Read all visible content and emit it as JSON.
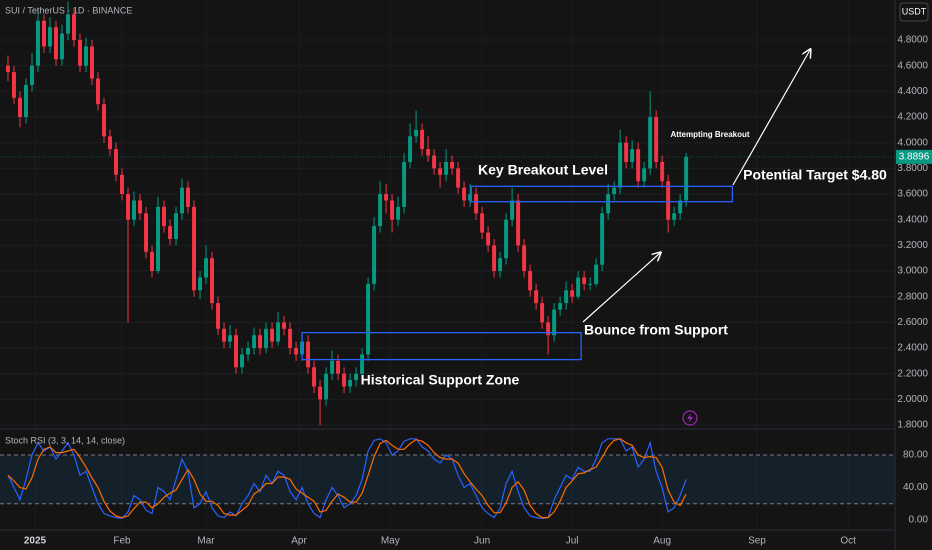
{
  "header": {
    "title": "SUI / TetherUS · 1D · BINANCE",
    "currency": "USDT"
  },
  "chart_data": [
    {
      "type": "candlestick",
      "up_color": "#089981",
      "down_color": "#f23645",
      "grid": true,
      "xlim": [
        -1.33,
        147.8
      ],
      "ylim": [
        1.777,
        5.112
      ],
      "yticks": [
        {
          "value": 1.8,
          "label": "1.8000"
        },
        {
          "value": 2.0,
          "label": "2.0000"
        },
        {
          "value": 2.2,
          "label": "2.2000"
        },
        {
          "value": 2.4,
          "label": "2.4000"
        },
        {
          "value": 2.6,
          "label": "2.6000"
        },
        {
          "value": 2.8,
          "label": "2.8000"
        },
        {
          "value": 3.0,
          "label": "3.0000"
        },
        {
          "value": 3.2,
          "label": "3.2000"
        },
        {
          "value": 3.4,
          "label": "3.4000"
        },
        {
          "value": 3.6,
          "label": "3.6000"
        },
        {
          "value": 3.8,
          "label": "3.8000"
        },
        {
          "value": 4.0,
          "label": "4.0000"
        },
        {
          "value": 4.2,
          "label": "4.2000"
        },
        {
          "value": 4.4,
          "label": "4.4000"
        },
        {
          "value": 4.6,
          "label": "4.6000"
        },
        {
          "value": 4.8,
          "label": "4.8000"
        }
      ],
      "ohlc": [
        [
          4.6,
          4.68,
          4.48,
          4.55
        ],
        [
          4.55,
          4.6,
          4.3,
          4.35
        ],
        [
          4.35,
          4.4,
          4.12,
          4.2
        ],
        [
          4.2,
          4.5,
          4.15,
          4.45
        ],
        [
          4.45,
          4.7,
          4.4,
          4.6
        ],
        [
          4.6,
          5.05,
          4.55,
          4.95
        ],
        [
          4.95,
          5.0,
          4.7,
          4.75
        ],
        [
          4.75,
          4.98,
          4.7,
          4.9
        ],
        [
          4.9,
          4.95,
          4.6,
          4.65
        ],
        [
          4.65,
          4.92,
          4.6,
          4.85
        ],
        [
          4.85,
          5.1,
          4.8,
          5.0
        ],
        [
          5.0,
          5.05,
          4.75,
          4.8
        ],
        [
          4.8,
          4.85,
          4.55,
          4.6
        ],
        [
          4.6,
          4.82,
          4.55,
          4.75
        ],
        [
          4.75,
          4.8,
          4.45,
          4.5
        ],
        [
          4.5,
          4.55,
          4.25,
          4.3
        ],
        [
          4.3,
          4.35,
          4.0,
          4.05
        ],
        [
          4.05,
          4.1,
          3.9,
          3.95
        ],
        [
          3.95,
          4.0,
          3.7,
          3.75
        ],
        [
          3.75,
          3.8,
          3.55,
          3.6
        ],
        [
          3.6,
          3.65,
          2.6,
          3.4
        ],
        [
          3.4,
          3.62,
          3.35,
          3.55
        ],
        [
          3.55,
          3.6,
          3.4,
          3.45
        ],
        [
          3.45,
          3.5,
          3.1,
          3.15
        ],
        [
          3.15,
          3.2,
          2.95,
          3.0
        ],
        [
          3.0,
          3.58,
          2.98,
          3.5
        ],
        [
          3.5,
          3.55,
          3.3,
          3.35
        ],
        [
          3.35,
          3.4,
          3.2,
          3.25
        ],
        [
          3.25,
          3.5,
          3.2,
          3.45
        ],
        [
          3.45,
          3.72,
          3.4,
          3.65
        ],
        [
          3.65,
          3.7,
          3.45,
          3.5
        ],
        [
          3.5,
          3.55,
          2.8,
          2.85
        ],
        [
          2.85,
          3.0,
          2.78,
          2.95
        ],
        [
          2.95,
          3.2,
          2.9,
          3.1
        ],
        [
          3.1,
          3.15,
          2.7,
          2.75
        ],
        [
          2.75,
          2.8,
          2.5,
          2.55
        ],
        [
          2.55,
          2.6,
          2.4,
          2.45
        ],
        [
          2.45,
          2.58,
          2.4,
          2.5
        ],
        [
          2.5,
          2.55,
          2.2,
          2.25
        ],
        [
          2.25,
          2.4,
          2.2,
          2.35
        ],
        [
          2.35,
          2.45,
          2.3,
          2.4
        ],
        [
          2.4,
          2.56,
          2.35,
          2.5
        ],
        [
          2.5,
          2.55,
          2.35,
          2.4
        ],
        [
          2.4,
          2.6,
          2.36,
          2.55
        ],
        [
          2.55,
          2.6,
          2.4,
          2.45
        ],
        [
          2.45,
          2.68,
          2.42,
          2.6
        ],
        [
          2.6,
          2.65,
          2.5,
          2.55
        ],
        [
          2.55,
          2.6,
          2.35,
          2.4
        ],
        [
          2.4,
          2.45,
          2.3,
          2.35
        ],
        [
          2.35,
          2.5,
          2.3,
          2.45
        ],
        [
          2.45,
          2.5,
          2.2,
          2.25
        ],
        [
          2.25,
          2.3,
          2.05,
          2.1
        ],
        [
          2.1,
          2.15,
          1.8,
          2.0
        ],
        [
          2.0,
          2.25,
          1.95,
          2.2
        ],
        [
          2.2,
          2.38,
          2.15,
          2.3
        ],
        [
          2.3,
          2.35,
          2.15,
          2.2
        ],
        [
          2.2,
          2.25,
          2.05,
          2.1
        ],
        [
          2.1,
          2.2,
          2.05,
          2.15
        ],
        [
          2.15,
          2.25,
          2.1,
          2.2
        ],
        [
          2.2,
          2.4,
          2.15,
          2.35
        ],
        [
          2.35,
          2.95,
          2.3,
          2.9
        ],
        [
          2.9,
          3.42,
          2.85,
          3.35
        ],
        [
          3.35,
          3.7,
          3.3,
          3.6
        ],
        [
          3.6,
          3.68,
          3.45,
          3.55
        ],
        [
          3.55,
          3.6,
          3.3,
          3.4
        ],
        [
          3.4,
          3.58,
          3.35,
          3.5
        ],
        [
          3.5,
          3.92,
          3.45,
          3.85
        ],
        [
          3.85,
          4.15,
          3.8,
          4.05
        ],
        [
          4.05,
          4.25,
          4.0,
          4.1
        ],
        [
          4.1,
          4.15,
          3.9,
          3.95
        ],
        [
          3.95,
          4.05,
          3.85,
          3.9
        ],
        [
          3.9,
          3.95,
          3.75,
          3.8
        ],
        [
          3.8,
          3.85,
          3.65,
          3.75
        ],
        [
          3.75,
          3.95,
          3.7,
          3.85
        ],
        [
          3.85,
          3.9,
          3.75,
          3.8
        ],
        [
          3.8,
          3.85,
          3.6,
          3.65
        ],
        [
          3.65,
          3.7,
          3.5,
          3.55
        ],
        [
          3.55,
          3.68,
          3.5,
          3.6
        ],
        [
          3.6,
          3.65,
          3.4,
          3.45
        ],
        [
          3.45,
          3.5,
          3.25,
          3.3
        ],
        [
          3.3,
          3.35,
          3.15,
          3.2
        ],
        [
          3.2,
          3.25,
          2.95,
          3.0
        ],
        [
          3.0,
          3.15,
          2.95,
          3.1
        ],
        [
          3.1,
          3.45,
          3.05,
          3.4
        ],
        [
          3.4,
          3.65,
          3.35,
          3.55
        ],
        [
          3.55,
          3.6,
          3.15,
          3.2
        ],
        [
          3.2,
          3.25,
          2.95,
          3.0
        ],
        [
          3.0,
          3.05,
          2.8,
          2.85
        ],
        [
          2.85,
          2.9,
          2.7,
          2.75
        ],
        [
          2.75,
          2.8,
          2.55,
          2.6
        ],
        [
          2.6,
          2.65,
          2.35,
          2.5
        ],
        [
          2.5,
          2.75,
          2.45,
          2.7
        ],
        [
          2.7,
          2.8,
          2.65,
          2.75
        ],
        [
          2.75,
          2.92,
          2.7,
          2.85
        ],
        [
          2.85,
          2.9,
          2.75,
          2.8
        ],
        [
          2.8,
          3.0,
          2.78,
          2.95
        ],
        [
          2.95,
          3.0,
          2.85,
          2.9
        ],
        [
          2.9,
          2.95,
          2.85,
          2.9
        ],
        [
          2.9,
          3.1,
          2.88,
          3.05
        ],
        [
          3.05,
          3.5,
          3.0,
          3.45
        ],
        [
          3.45,
          3.68,
          3.4,
          3.6
        ],
        [
          3.6,
          3.7,
          3.55,
          3.65
        ],
        [
          3.65,
          4.1,
          3.6,
          4.0
        ],
        [
          4.0,
          4.05,
          3.8,
          3.85
        ],
        [
          3.85,
          4.02,
          3.8,
          3.95
        ],
        [
          3.95,
          4.0,
          3.65,
          3.7
        ],
        [
          3.7,
          3.85,
          3.65,
          3.8
        ],
        [
          3.8,
          4.4,
          3.75,
          4.2
        ],
        [
          4.2,
          4.25,
          3.8,
          3.85
        ],
        [
          3.85,
          3.9,
          3.65,
          3.7
        ],
        [
          3.7,
          3.75,
          3.3,
          3.4
        ],
        [
          3.4,
          3.5,
          3.35,
          3.45
        ],
        [
          3.45,
          3.6,
          3.4,
          3.55
        ],
        [
          3.55,
          3.92,
          3.5,
          3.8896
        ]
      ],
      "zones": [
        {
          "label": "Key Breakout Level",
          "x": [
            77.2,
            120.7
          ],
          "y": [
            3.54,
            3.66
          ],
          "color": "#2962ff"
        },
        {
          "label": "Historical Support Zone",
          "x": [
            49,
            95.5
          ],
          "y": [
            2.31,
            2.52
          ],
          "color": "#2962ff"
        }
      ],
      "annotations": [
        "Attempting Breakout",
        "Potential Target $4.80",
        "Bounce from Support"
      ]
    },
    {
      "type": "line",
      "title": "Stoch RSI (3, 3, 14, 14, close)",
      "grid": false,
      "xlim": [
        -1.33,
        147.8
      ],
      "ylim": [
        -12.3,
        110.8
      ],
      "yticks": [
        {
          "value": 0,
          "label": "0.00"
        },
        {
          "value": 40,
          "label": "40.00"
        },
        {
          "value": 80,
          "label": "80.00"
        }
      ],
      "band": [
        20,
        80
      ],
      "xticks": [
        {
          "value": 4.5,
          "label": "2025"
        },
        {
          "value": 19,
          "label": "Feb"
        },
        {
          "value": 33,
          "label": "Mar"
        },
        {
          "value": 48.5,
          "label": "Apr"
        },
        {
          "value": 63.7,
          "label": "May"
        },
        {
          "value": 79,
          "label": "Jun"
        },
        {
          "value": 94,
          "label": "Jul"
        },
        {
          "value": 109,
          "label": "Aug"
        },
        {
          "value": 124.8,
          "label": "Sep"
        },
        {
          "value": 140,
          "label": "Oct"
        }
      ],
      "series": [
        {
          "color": "#2962ff",
          "values": [
            55,
            40,
            25,
            50,
            80,
            95,
            85,
            90,
            75,
            85,
            95,
            80,
            55,
            60,
            40,
            20,
            8,
            5,
            3,
            2,
            10,
            30,
            25,
            12,
            8,
            40,
            35,
            25,
            50,
            75,
            60,
            15,
            20,
            35,
            15,
            5,
            3,
            10,
            5,
            20,
            30,
            45,
            35,
            55,
            45,
            60,
            55,
            35,
            25,
            40,
            20,
            8,
            3,
            25,
            40,
            30,
            15,
            20,
            30,
            50,
            85,
            98,
            100,
            95,
            80,
            85,
            97,
            100,
            100,
            90,
            85,
            75,
            70,
            80,
            75,
            55,
            40,
            45,
            30,
            15,
            8,
            3,
            15,
            45,
            60,
            35,
            15,
            5,
            3,
            2,
            3,
            25,
            40,
            55,
            50,
            65,
            60,
            60,
            75,
            95,
            100,
            100,
            100,
            85,
            90,
            65,
            75,
            95,
            60,
            40,
            10,
            15,
            30,
            50
          ]
        },
        {
          "color": "#ff6d00",
          "values": [
            55,
            48,
            40,
            38,
            52,
            75,
            87,
            90,
            83,
            83,
            85,
            87,
            77,
            65,
            52,
            40,
            23,
            11,
            5,
            3,
            5,
            14,
            22,
            22,
            15,
            20,
            28,
            33,
            37,
            50,
            62,
            50,
            32,
            23,
            23,
            18,
            8,
            6,
            6,
            12,
            18,
            32,
            37,
            45,
            45,
            53,
            53,
            50,
            38,
            33,
            28,
            23,
            10,
            12,
            23,
            32,
            28,
            22,
            22,
            33,
            55,
            78,
            94,
            98,
            92,
            87,
            87,
            94,
            99,
            97,
            92,
            83,
            77,
            75,
            75,
            70,
            57,
            47,
            38,
            30,
            18,
            9,
            9,
            21,
            40,
            47,
            37,
            18,
            8,
            3,
            3,
            10,
            23,
            40,
            48,
            57,
            58,
            62,
            65,
            77,
            90,
            98,
            100,
            95,
            92,
            80,
            77,
            78,
            77,
            65,
            37,
            22,
            18,
            32
          ]
        }
      ]
    }
  ]
}
